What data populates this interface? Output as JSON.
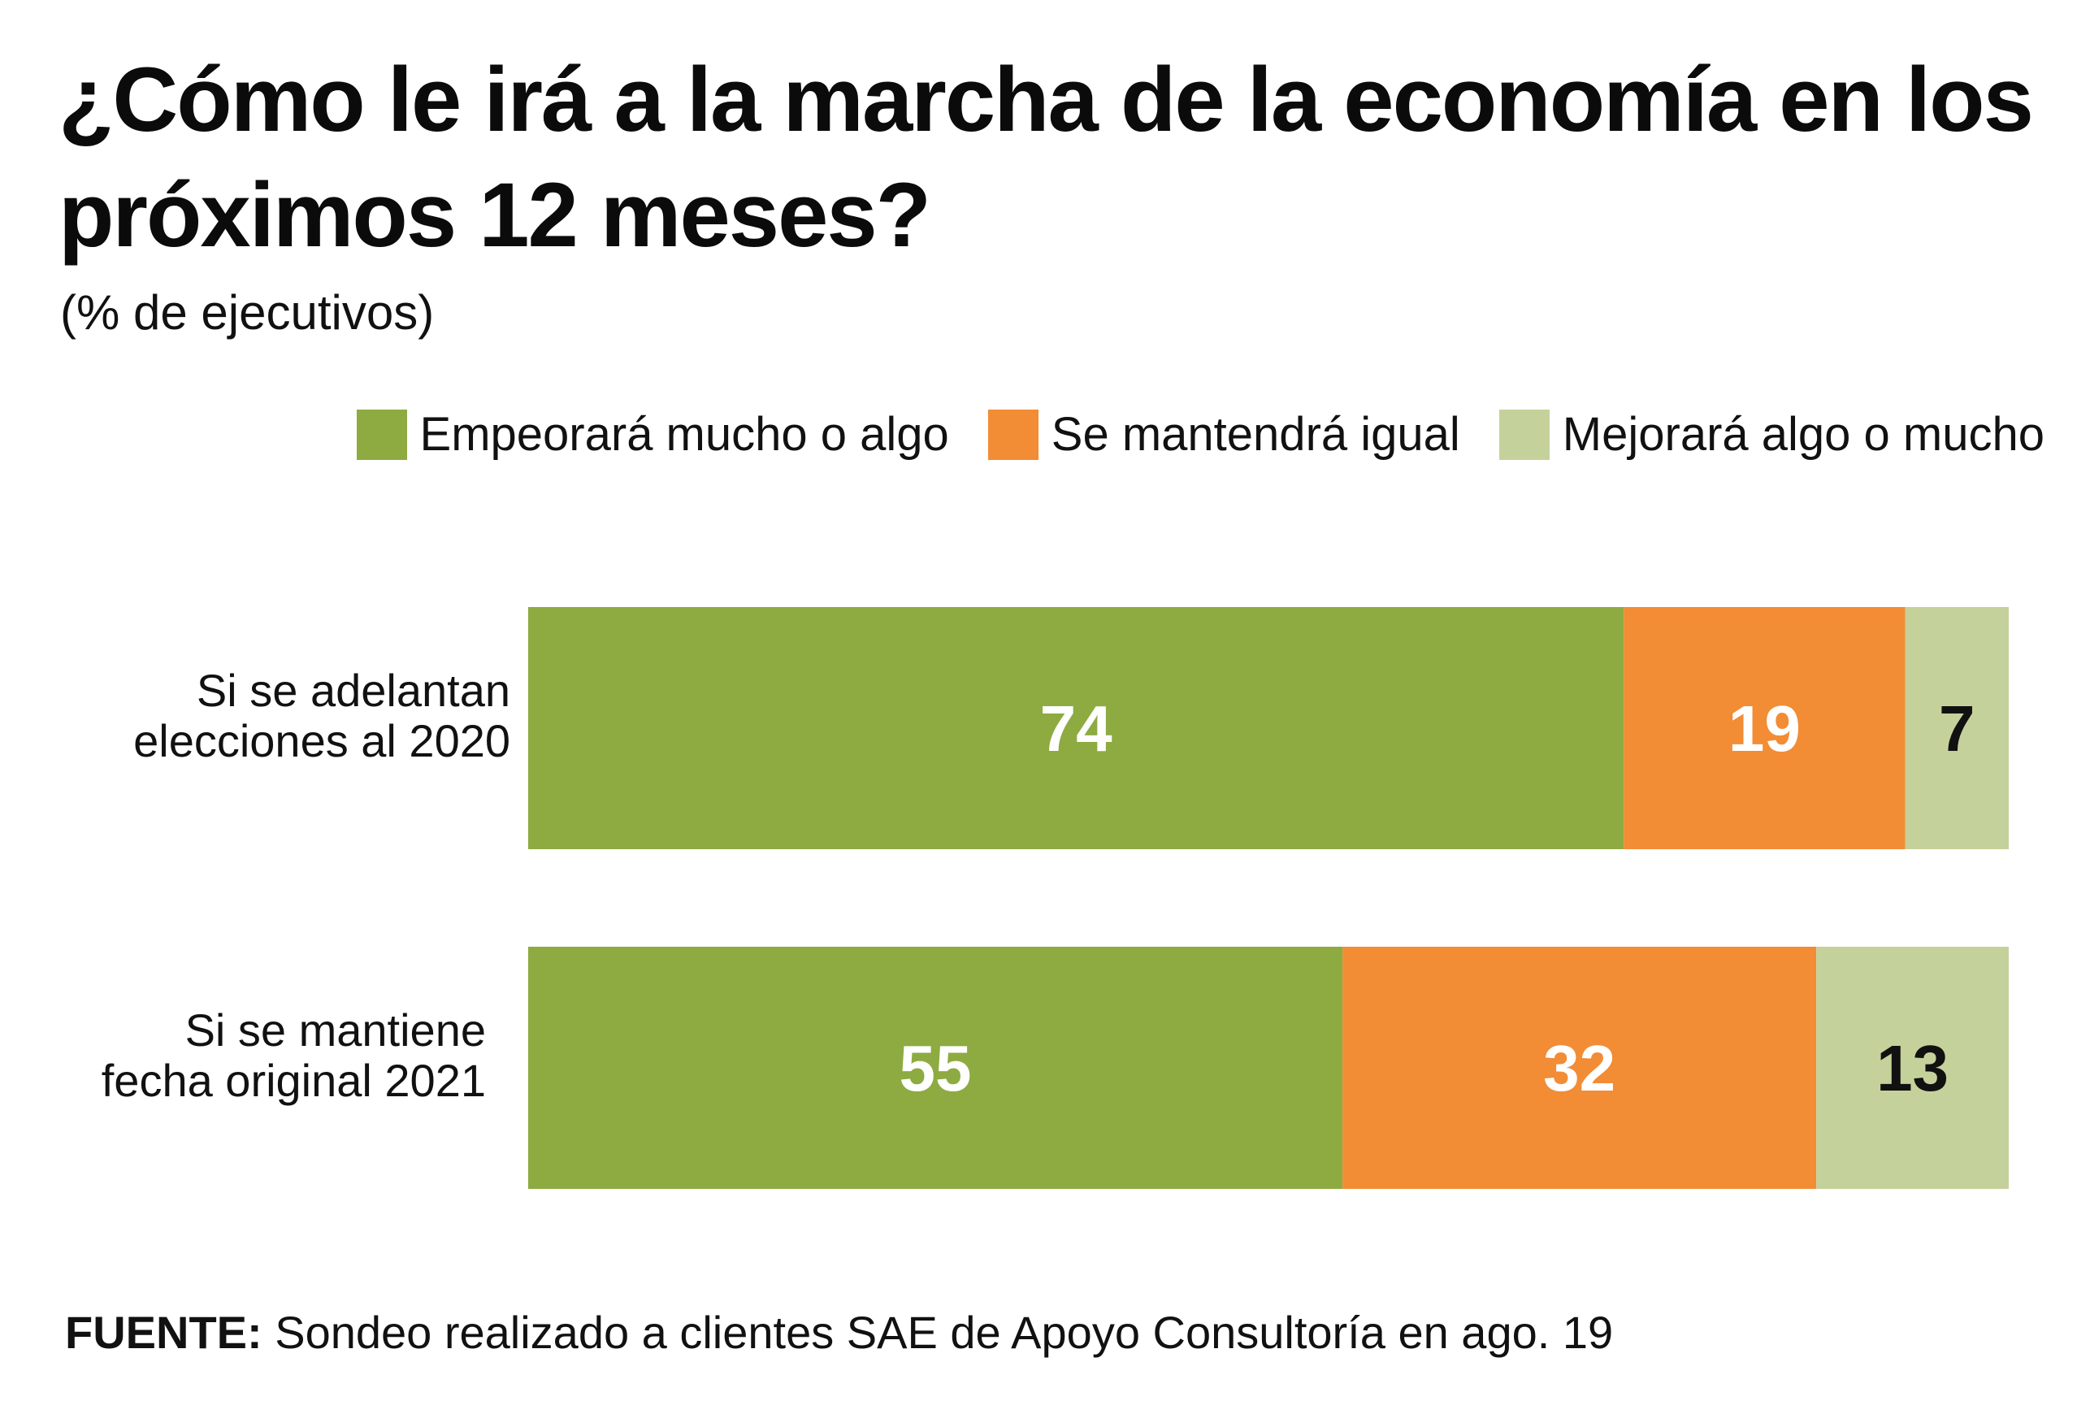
{
  "title": "¿Cómo le irá a la marcha de la economía en los próximos 12 meses?",
  "subtitle": "(% de ejecutivos)",
  "legend": [
    {
      "label": "Empeorará mucho o algo",
      "color": "#8dab41"
    },
    {
      "label": "Se mantendrá igual",
      "color": "#f28c35"
    },
    {
      "label": "Mejorará algo o mucho",
      "color": "#c5d19a"
    }
  ],
  "source": {
    "label": "FUENTE:",
    "text": "Sondeo realizado a clientes SAE de Apoyo Consultoría en ago. 19"
  },
  "chart_data": {
    "type": "bar",
    "orientation": "horizontal",
    "stacked": true,
    "categories": [
      [
        "Si se adelantan",
        "elecciones al 2020"
      ],
      [
        "Si se mantiene",
        "fecha original 2021"
      ]
    ],
    "series": [
      {
        "name": "Empeorará mucho o algo",
        "color": "#8dab41",
        "label_color": "#ffffff",
        "values": [
          74,
          55
        ]
      },
      {
        "name": "Se mantendrá igual",
        "color": "#f28c35",
        "label_color": "#ffffff",
        "values": [
          19,
          32
        ]
      },
      {
        "name": "Mejorará algo o mucho",
        "color": "#c5d19a",
        "label_color": "#111111",
        "values": [
          7,
          13
        ]
      }
    ],
    "xlim": [
      0,
      100
    ],
    "grid": false,
    "legend_position": "top-right"
  }
}
